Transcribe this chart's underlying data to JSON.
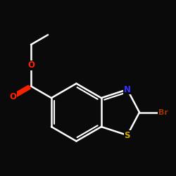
{
  "background": "#0a0a0a",
  "bond_color": "#ffffff",
  "bond_width": 1.8,
  "atom_colors": {
    "N": "#3333ff",
    "S": "#ccaa00",
    "Br": "#993300",
    "O": "#ff2200",
    "C": "#ffffff"
  },
  "font_size": 8.5,
  "br_font_size": 8.0,
  "figsize": [
    2.5,
    2.5
  ],
  "dpi": 100
}
